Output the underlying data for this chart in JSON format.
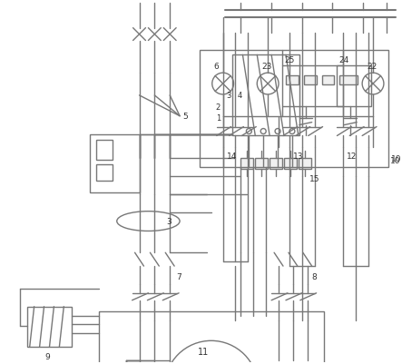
{
  "bg_color": "#ffffff",
  "lc": "#777777",
  "lw": 1.0,
  "fig_w": 4.43,
  "fig_h": 4.02
}
